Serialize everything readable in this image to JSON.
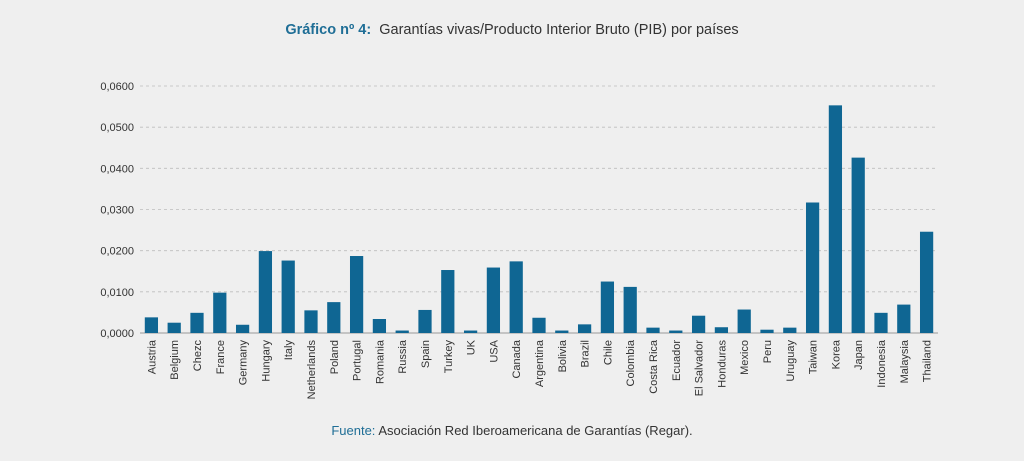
{
  "title": {
    "label": "Gráfico nº 4:",
    "text": "Garantías vivas/Producto Interior Bruto (PIB) por países"
  },
  "source": {
    "label": "Fuente:",
    "text": "Asociación Red Iberoamericana de Garantías (Regar)."
  },
  "colors": {
    "bar": "#0f6693",
    "grid": "#bdbdbd",
    "axis": "#999999",
    "background": "#efefef"
  },
  "chart_data": {
    "type": "bar",
    "categories": [
      "Austria",
      "Belgium",
      "Chezc",
      "France",
      "Germany",
      "Hungary",
      "Italy",
      "Netherlands",
      "Poland",
      "Portugal",
      "Romania",
      "Russia",
      "Spain",
      "Turkey",
      "UK",
      "USA",
      "Canada",
      "Argentina",
      "Bolivia",
      "Brazil",
      "Chile",
      "Colombia",
      "Costa Rica",
      "Ecuador",
      "El Salvador",
      "Honduras",
      "Mexico",
      "Peru",
      "Uruguay",
      "Taiwan",
      "Korea",
      "Japan",
      "Indonesia",
      "Malaysia",
      "Thailand"
    ],
    "values": [
      0.0038,
      0.0025,
      0.0049,
      0.0098,
      0.002,
      0.0199,
      0.0176,
      0.0055,
      0.0075,
      0.0187,
      0.0034,
      0.0006,
      0.0056,
      0.0153,
      0.0006,
      0.0159,
      0.0174,
      0.0037,
      0.0006,
      0.0021,
      0.0125,
      0.0112,
      0.0013,
      0.0006,
      0.0042,
      0.0014,
      0.0057,
      0.0008,
      0.0013,
      0.0317,
      0.0553,
      0.0426,
      0.0049,
      0.0069,
      0.0246
    ],
    "ylim": [
      0,
      0.06
    ],
    "yticks": [
      "0,0000",
      "0,0100",
      "0,0200",
      "0,0300",
      "0,0400",
      "0,0500",
      "0,0600"
    ],
    "grid": true,
    "legend": "none"
  }
}
